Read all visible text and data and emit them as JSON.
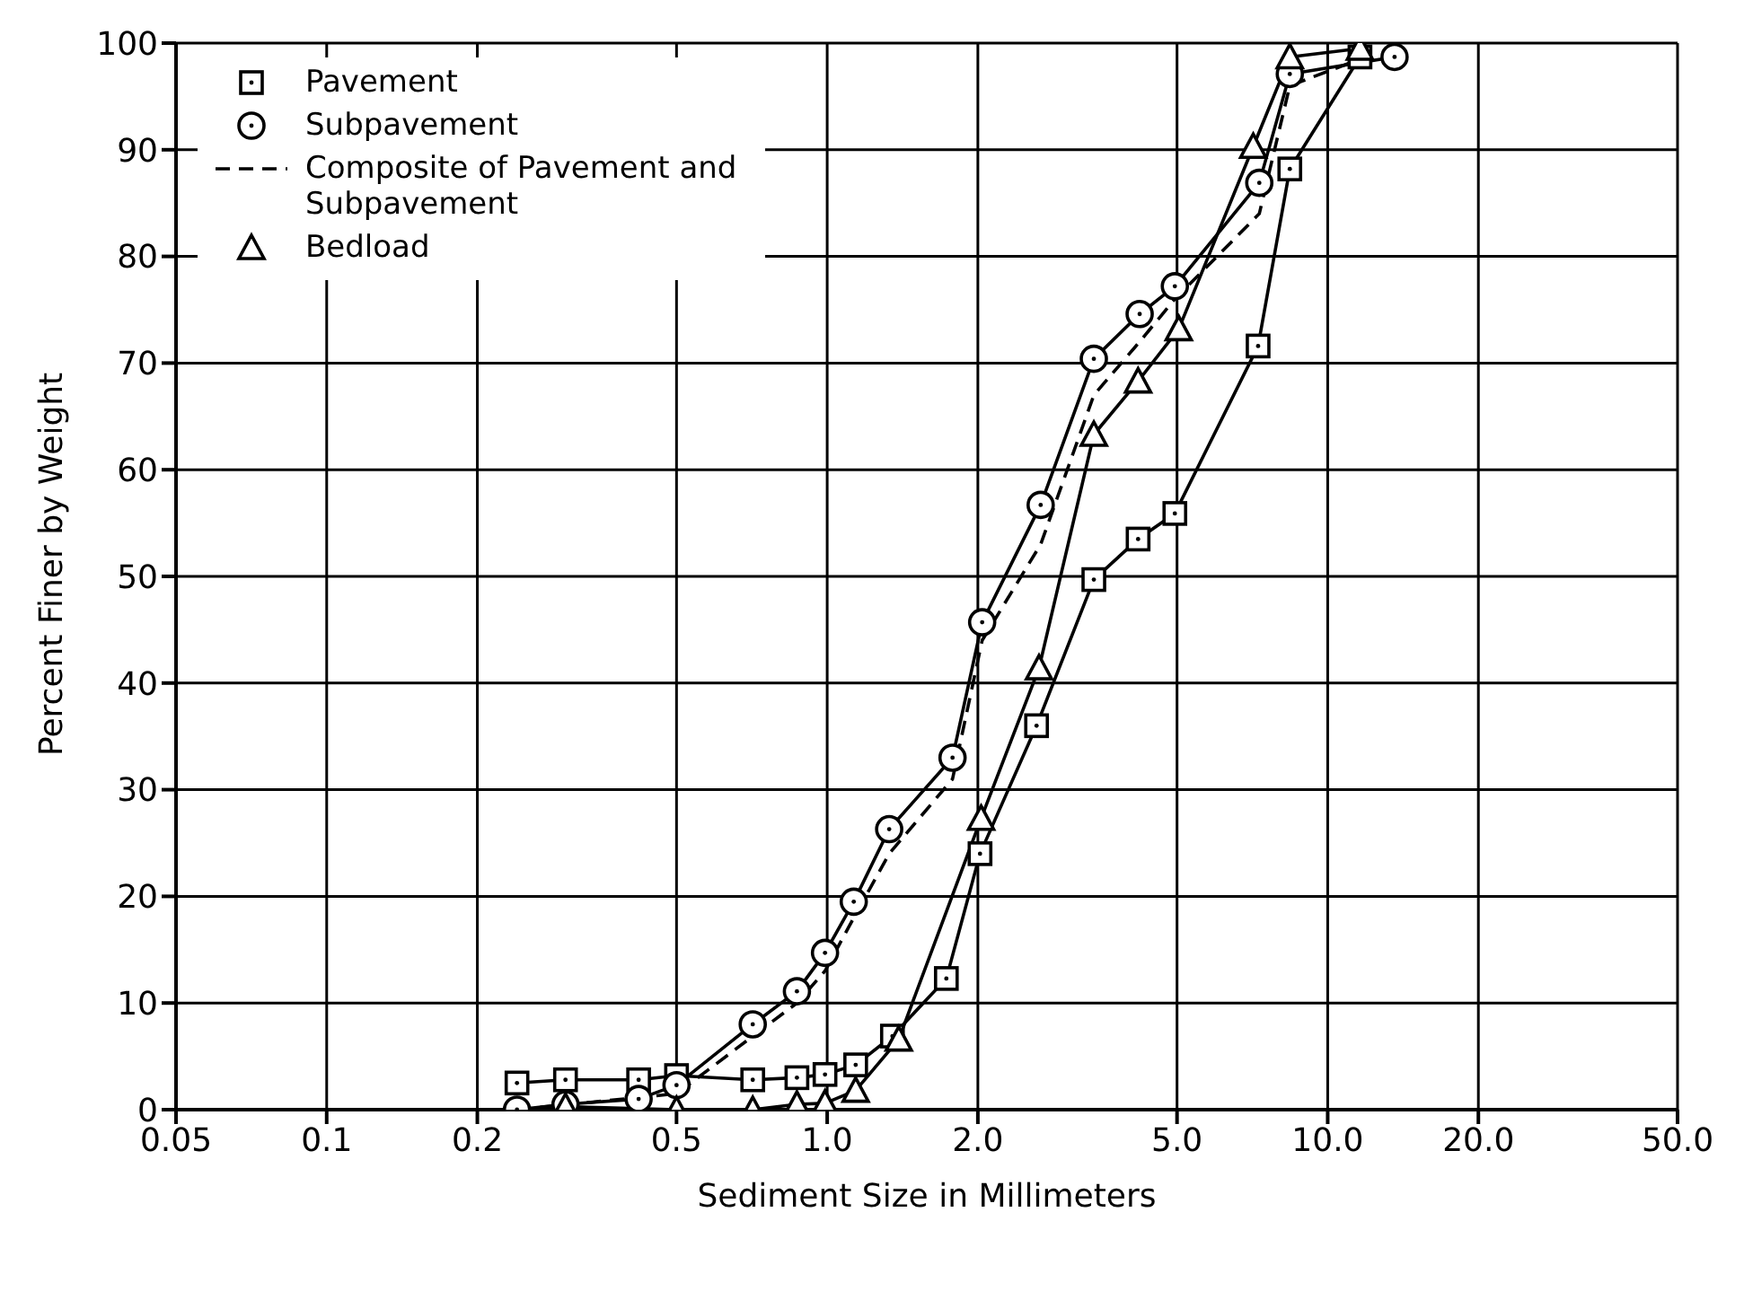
{
  "chart_data": {
    "type": "line",
    "xlabel": "Sediment Size in Millimeters",
    "ylabel": "Percent Finer by Weight",
    "log": "x",
    "xlim": [
      0.05,
      50
    ],
    "xticks": [
      0.05,
      {
        "value": 0.1,
        "label": "0.1"
      },
      0.2,
      0.5,
      {
        "value": 1,
        "label": "1.0"
      },
      {
        "value": 2,
        "label": "2.0"
      },
      {
        "value": 5,
        "label": "5.0"
      },
      {
        "value": 10,
        "label": "10.0"
      },
      {
        "value": 20,
        "label": "20.0"
      },
      {
        "value": 50,
        "label": "50.0"
      }
    ],
    "ylim": [
      0,
      100
    ],
    "yticks": [
      0,
      10,
      20,
      30,
      40,
      50,
      60,
      70,
      80,
      90,
      100
    ],
    "grid": true,
    "legend": "top left",
    "series": [
      {
        "name": "Pavement",
        "color": "#000000",
        "marker": "square",
        "line_style": "solid",
        "x": [
          0.24,
          0.3,
          0.42,
          0.5,
          0.71,
          0.87,
          0.99,
          1.14,
          1.35,
          1.73,
          2.02,
          2.62,
          3.41,
          4.18,
          4.95,
          7.26,
          8.4,
          11.6
        ],
        "values": [
          2.5,
          2.8,
          2.8,
          3.2,
          2.8,
          3,
          3.3,
          4.2,
          6.9,
          12.3,
          24,
          36,
          49.7,
          53.5,
          55.9,
          71.6,
          88.2,
          98.7
        ]
      },
      {
        "name": "Subpavement",
        "color": "#000000",
        "marker": "circle",
        "line_style": "solid",
        "x": [
          0.24,
          0.3,
          0.42,
          0.5,
          0.71,
          0.87,
          0.99,
          1.13,
          1.33,
          1.78,
          2.04,
          2.67,
          3.41,
          4.21,
          4.95,
          7.3,
          8.4,
          13.6
        ],
        "values": [
          0,
          0.5,
          1,
          2.3,
          8,
          11.1,
          14.7,
          19.5,
          26.3,
          33,
          45.7,
          56.7,
          70.4,
          74.6,
          77.2,
          86.9,
          97.1,
          98.7
        ]
      },
      {
        "name": "Composite of Pavement and Subpavement",
        "color": "#000000",
        "marker": "none",
        "line_style": "dashed",
        "x": [
          0.24,
          0.5,
          0.87,
          0.99,
          1.13,
          1.33,
          1.78,
          2.04,
          2.67,
          3.41,
          4.21,
          4.95,
          7.3,
          8.4,
          11.6
        ],
        "values": [
          0,
          1.5,
          10,
          13,
          18,
          24,
          31,
          44,
          53,
          67,
          72,
          76,
          84,
          96,
          98.5
        ]
      },
      {
        "name": "Bedload",
        "color": "#000000",
        "marker": "triangle",
        "line_style": "solid",
        "x": [
          0.3,
          0.5,
          0.71,
          0.87,
          0.99,
          1.14,
          1.39,
          2.03,
          2.65,
          3.41,
          4.18,
          5.04,
          7.1,
          8.4,
          11.6
        ],
        "values": [
          0.3,
          0,
          0,
          0.5,
          0.6,
          1.8,
          6.6,
          27.3,
          41.4,
          63.3,
          68.3,
          73.2,
          90.3,
          98.7,
          99.5
        ]
      }
    ]
  }
}
